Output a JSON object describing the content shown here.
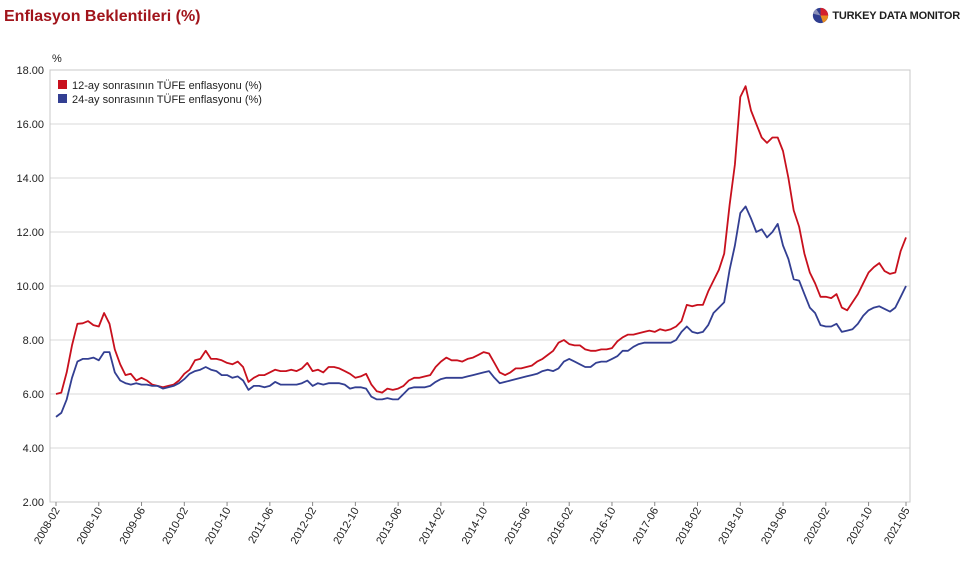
{
  "title": "Enflasyon Beklentileri (%)",
  "brand": {
    "name": "TURKEY DATA MONITOR",
    "icon": "pie-chart-logo-icon"
  },
  "colors": {
    "title": "#a1141b",
    "series_12m": "#c8101d",
    "series_24m": "#333f92",
    "grid": "#d9d9d9"
  },
  "chart_data": {
    "type": "line",
    "title": "Enflasyon Beklentileri (%)",
    "ylabel": "%",
    "ylim": [
      2,
      18
    ],
    "yticks": [
      "2.00",
      "4.00",
      "6.00",
      "8.00",
      "10.00",
      "12.00",
      "14.00",
      "16.00",
      "18.00"
    ],
    "xticks": [
      "2008-02",
      "2008-10",
      "2009-06",
      "2010-02",
      "2010-10",
      "2011-06",
      "2012-02",
      "2012-10",
      "2013-06",
      "2014-02",
      "2014-10",
      "2015-06",
      "2016-02",
      "2016-10",
      "2017-06",
      "2018-02",
      "2018-10",
      "2019-06",
      "2020-02",
      "2020-10",
      "2021-05"
    ],
    "x_start": "2008-02",
    "x_end": "2021-05",
    "grid": true,
    "legend_position": "top-left",
    "series": [
      {
        "name": "12-ay sonrasının TÜFE enflasyonu (%)",
        "values": [
          6.0,
          6.05,
          6.8,
          7.8,
          8.6,
          8.62,
          8.7,
          8.55,
          8.5,
          9.0,
          8.6,
          7.65,
          7.1,
          6.7,
          6.75,
          6.5,
          6.6,
          6.5,
          6.35,
          6.3,
          6.25,
          6.3,
          6.35,
          6.5,
          6.75,
          6.9,
          7.25,
          7.3,
          7.6,
          7.3,
          7.3,
          7.25,
          7.15,
          7.1,
          7.2,
          7.0,
          6.45,
          6.6,
          6.7,
          6.7,
          6.8,
          6.9,
          6.85,
          6.85,
          6.9,
          6.85,
          6.95,
          7.15,
          6.85,
          6.9,
          6.8,
          7.0,
          7.0,
          6.95,
          6.85,
          6.75,
          6.6,
          6.65,
          6.75,
          6.35,
          6.1,
          6.05,
          6.2,
          6.15,
          6.2,
          6.3,
          6.5,
          6.6,
          6.6,
          6.65,
          6.7,
          7.0,
          7.2,
          7.35,
          7.25,
          7.25,
          7.2,
          7.3,
          7.35,
          7.45,
          7.55,
          7.5,
          7.15,
          6.8,
          6.7,
          6.8,
          6.95,
          6.95,
          7.0,
          7.05,
          7.2,
          7.3,
          7.45,
          7.6,
          7.9,
          8.0,
          7.85,
          7.8,
          7.8,
          7.65,
          7.6,
          7.6,
          7.65,
          7.65,
          7.7,
          7.95,
          8.1,
          8.2,
          8.2,
          8.25,
          8.3,
          8.35,
          8.3,
          8.4,
          8.35,
          8.4,
          8.5,
          8.7,
          9.3,
          9.25,
          9.3,
          9.3,
          9.8,
          10.2,
          10.6,
          11.2,
          13.0,
          14.5,
          17.0,
          17.4,
          16.5,
          16.0,
          15.5,
          15.3,
          15.5,
          15.5,
          15.0,
          14.0,
          12.8,
          12.2,
          11.2,
          10.5,
          10.1,
          9.6,
          9.6,
          9.55,
          9.7,
          9.2,
          9.1,
          9.4,
          9.7,
          10.1,
          10.5,
          10.7,
          10.85,
          10.55,
          10.45,
          10.5,
          11.3,
          11.8
        ]
      },
      {
        "name": "24-ay sonrasının TÜFE enflasyonu (%)",
        "values": [
          5.15,
          5.3,
          5.8,
          6.6,
          7.2,
          7.3,
          7.3,
          7.35,
          7.25,
          7.55,
          7.55,
          6.8,
          6.5,
          6.4,
          6.35,
          6.4,
          6.35,
          6.35,
          6.3,
          6.3,
          6.2,
          6.25,
          6.3,
          6.4,
          6.55,
          6.75,
          6.85,
          6.9,
          7.0,
          6.9,
          6.85,
          6.7,
          6.7,
          6.6,
          6.65,
          6.5,
          6.15,
          6.3,
          6.3,
          6.25,
          6.3,
          6.45,
          6.35,
          6.35,
          6.35,
          6.35,
          6.4,
          6.5,
          6.3,
          6.4,
          6.35,
          6.4,
          6.4,
          6.4,
          6.35,
          6.2,
          6.25,
          6.25,
          6.2,
          5.9,
          5.8,
          5.8,
          5.85,
          5.8,
          5.8,
          6.0,
          6.2,
          6.25,
          6.25,
          6.25,
          6.3,
          6.45,
          6.55,
          6.6,
          6.6,
          6.6,
          6.6,
          6.65,
          6.7,
          6.75,
          6.8,
          6.85,
          6.6,
          6.4,
          6.45,
          6.5,
          6.55,
          6.6,
          6.65,
          6.7,
          6.75,
          6.85,
          6.9,
          6.85,
          6.95,
          7.2,
          7.3,
          7.2,
          7.1,
          7.0,
          7.0,
          7.15,
          7.2,
          7.2,
          7.3,
          7.4,
          7.6,
          7.6,
          7.75,
          7.85,
          7.9,
          7.9,
          7.9,
          7.9,
          7.9,
          7.9,
          8.0,
          8.3,
          8.5,
          8.3,
          8.25,
          8.3,
          8.55,
          9.0,
          9.2,
          9.4,
          10.6,
          11.5,
          12.7,
          12.95,
          12.5,
          12.0,
          12.1,
          11.8,
          12.0,
          12.3,
          11.5,
          11.0,
          10.25,
          10.2,
          9.7,
          9.2,
          9.0,
          8.55,
          8.5,
          8.5,
          8.6,
          8.3,
          8.35,
          8.4,
          8.6,
          8.9,
          9.1,
          9.2,
          9.25,
          9.15,
          9.05,
          9.2,
          9.6,
          10.0
        ]
      }
    ]
  }
}
